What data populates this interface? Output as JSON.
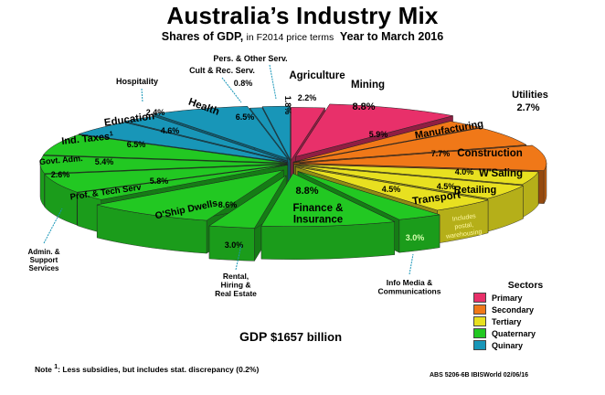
{
  "title": "Australia’s Industry Mix",
  "subtitle": {
    "main": "Shares of GDP,",
    "terms": "in F2014 price terms",
    "period": "Year to March 2016"
  },
  "gdp": {
    "label": "GDP",
    "value": "$1657 billion"
  },
  "note": {
    "prefix": "Note",
    "sup": "1",
    "text": ":  Less subsidies, but includes stat. discrepancy (0.2%)"
  },
  "source": "ABS 5206-6B  IBISWorld  02/06/16",
  "legend": {
    "title": "Sectors",
    "items": [
      {
        "label": "Primary",
        "color": "#e8306a"
      },
      {
        "label": "Secondary",
        "color": "#f07818"
      },
      {
        "label": "Tertiary",
        "color": "#e8e020"
      },
      {
        "label": "Quaternary",
        "color": "#22c822"
      },
      {
        "label": "Quinary",
        "color": "#1896b8"
      }
    ]
  },
  "chart_data": {
    "type": "pie",
    "title": "Australia’s Industry Mix",
    "unit": "% of GDP",
    "slices": [
      {
        "name": "Agriculture",
        "value": 2.2,
        "label": "2.2%",
        "sector": "Primary"
      },
      {
        "name": "Mining",
        "value": 8.8,
        "label": "8.8%",
        "sector": "Primary"
      },
      {
        "name": "Utilities",
        "value": 2.7,
        "label": "2.7%",
        "sector": "Secondary"
      },
      {
        "name": "Manufacturing",
        "value": 5.9,
        "label": "5.9%",
        "sector": "Secondary"
      },
      {
        "name": "Construction",
        "value": 7.7,
        "label": "7.7%",
        "sector": "Secondary"
      },
      {
        "name": "W'Saling",
        "value": 4.0,
        "label": "4.0%",
        "sector": "Tertiary"
      },
      {
        "name": "Retailing",
        "value": 4.5,
        "label": "4.5%",
        "sector": "Tertiary"
      },
      {
        "name": "Transport",
        "value": 4.5,
        "label": "4.5%",
        "sector": "Tertiary",
        "note": "Includes postal, warehousing"
      },
      {
        "name": "Info Media & Communications",
        "value": 3.0,
        "label": "3.0%",
        "sector": "Quaternary"
      },
      {
        "name": "Finance & Insurance",
        "value": 8.8,
        "label": "8.8%",
        "sector": "Quaternary"
      },
      {
        "name": "Rental, Hiring & Real Estate",
        "value": 3.0,
        "label": "3.0%",
        "sector": "Quaternary"
      },
      {
        "name": "O'Ship Dwells.",
        "value": 8.6,
        "label": "8.6%",
        "sector": "Quaternary"
      },
      {
        "name": "Admin. & Support Services",
        "value": 2.6,
        "label": "2.6%",
        "sector": "Quaternary"
      },
      {
        "name": "Prof. & Tech Serv",
        "value": 5.8,
        "label": "5.8%",
        "sector": "Quaternary"
      },
      {
        "name": "Govt. Adm.",
        "value": 5.4,
        "label": "5.4%",
        "sector": "Quaternary"
      },
      {
        "name": "Ind. Taxes",
        "value": 6.5,
        "label": "6.5%",
        "sector": "Quaternary",
        "footnote": "1"
      },
      {
        "name": "Education",
        "value": 4.6,
        "label": "4.6%",
        "sector": "Quinary"
      },
      {
        "name": "Hospitality",
        "value": 2.4,
        "label": "2.4%",
        "sector": "Quinary"
      },
      {
        "name": "Health",
        "value": 6.5,
        "label": "6.5%",
        "sector": "Quinary"
      },
      {
        "name": "Cult & Rec. Serv.",
        "value": 0.8,
        "label": "0.8%",
        "sector": "Quinary"
      },
      {
        "name": "Pers. & Other Serv.",
        "value": 1.8,
        "label": "1.8%",
        "sector": "Quinary"
      }
    ]
  }
}
